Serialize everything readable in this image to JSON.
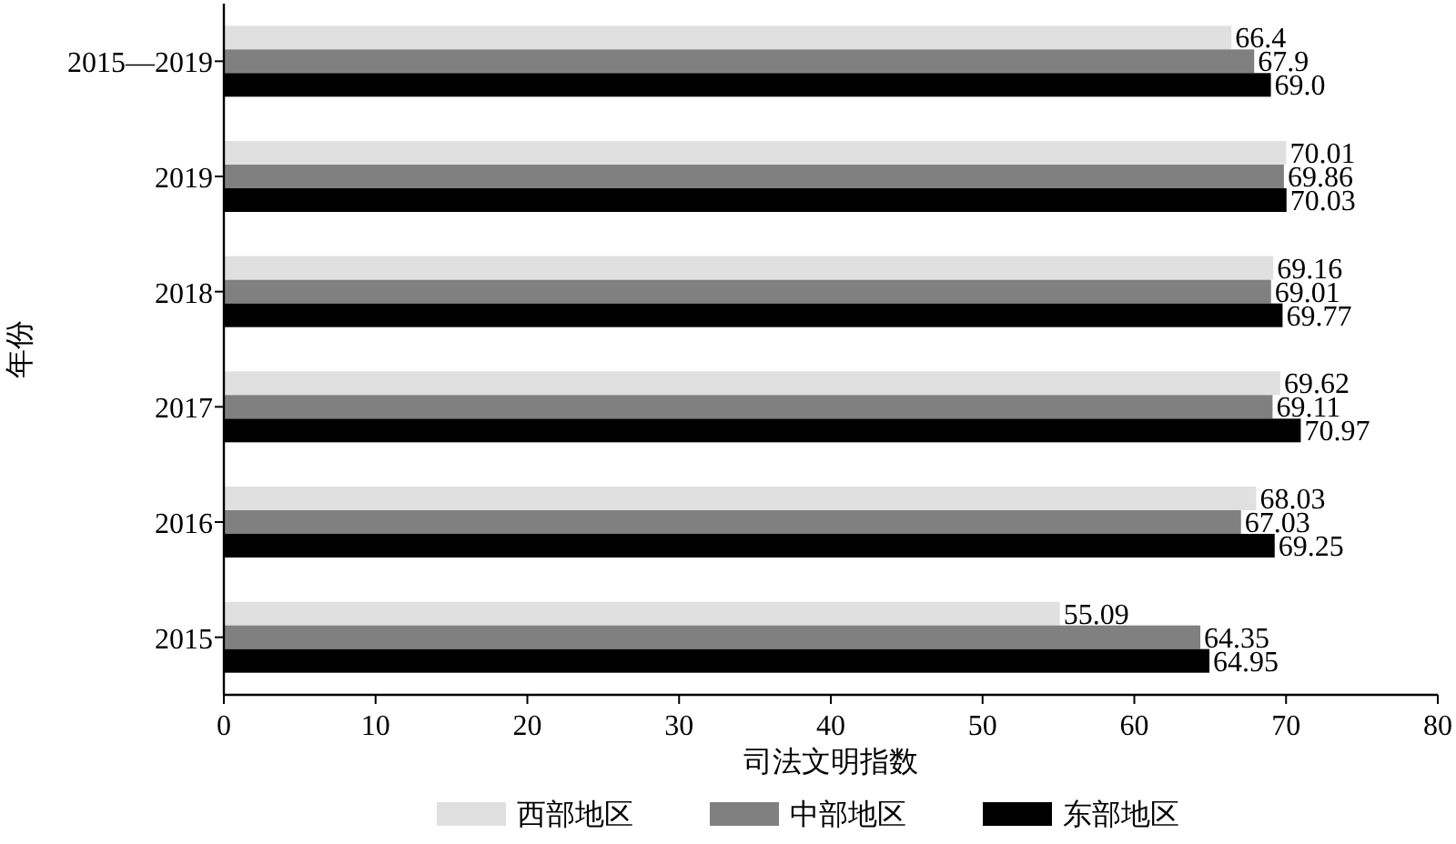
{
  "chart_data": {
    "type": "bar",
    "orientation": "horizontal",
    "xlabel": "司法文明指数",
    "ylabel": "年份",
    "categories": [
      "2015—2019",
      "2019",
      "2018",
      "2017",
      "2016",
      "2015"
    ],
    "series": [
      {
        "name": "西部地区",
        "color": "#e0e0e0",
        "values": [
          66.4,
          70.01,
          69.16,
          69.62,
          68.03,
          55.09
        ],
        "value_labels": [
          "66.4",
          "70.01",
          "69.16",
          "69.62",
          "68.03",
          "55.09"
        ]
      },
      {
        "name": "中部地区",
        "color": "#808080",
        "values": [
          67.9,
          69.86,
          69.01,
          69.11,
          67.03,
          64.35
        ],
        "value_labels": [
          "67.9",
          "69.86",
          "69.01",
          "69.11",
          "67.03",
          "64.35"
        ]
      },
      {
        "name": "东部地区",
        "color": "#000000",
        "values": [
          69.0,
          70.03,
          69.77,
          70.97,
          69.25,
          64.95
        ],
        "value_labels": [
          "69.0",
          "70.03",
          "69.77",
          "70.97",
          "69.25",
          "64.95"
        ]
      }
    ],
    "xlim": [
      0,
      80
    ],
    "xticks": [
      0,
      10,
      20,
      30,
      40,
      50,
      60,
      70,
      80
    ],
    "legend": "bottom"
  }
}
